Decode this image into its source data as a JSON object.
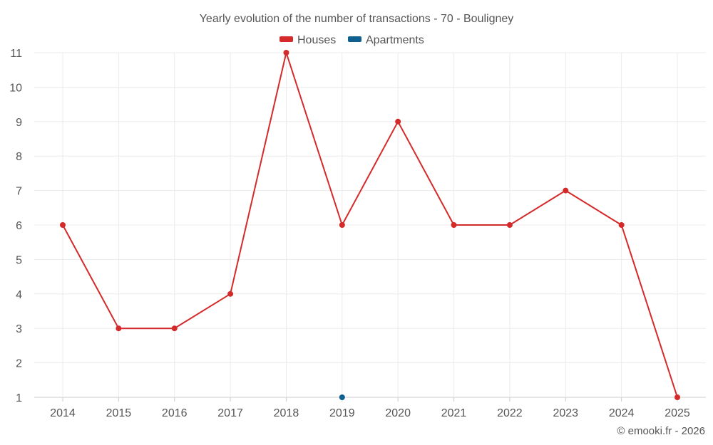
{
  "chart_data": {
    "type": "line",
    "title": "Yearly evolution of the number of transactions - 70 - Bouligney",
    "categories": [
      "2014",
      "2015",
      "2016",
      "2017",
      "2018",
      "2019",
      "2020",
      "2021",
      "2022",
      "2023",
      "2024",
      "2025"
    ],
    "series": [
      {
        "name": "Houses",
        "color": "#d42a2a",
        "values": [
          6,
          3,
          3,
          4,
          11,
          6,
          9,
          6,
          6,
          7,
          6,
          1
        ]
      },
      {
        "name": "Apartments",
        "color": "#0f5f91",
        "values": [
          null,
          null,
          null,
          null,
          null,
          1,
          null,
          null,
          null,
          null,
          null,
          null
        ]
      }
    ],
    "yticks": [
      1,
      2,
      3,
      4,
      5,
      6,
      7,
      8,
      9,
      10,
      11
    ],
    "ylim": [
      1,
      11
    ],
    "xlabel": "",
    "ylabel": "",
    "legend": "top-center",
    "grid": true
  },
  "copyright": "© emooki.fr - 2026"
}
